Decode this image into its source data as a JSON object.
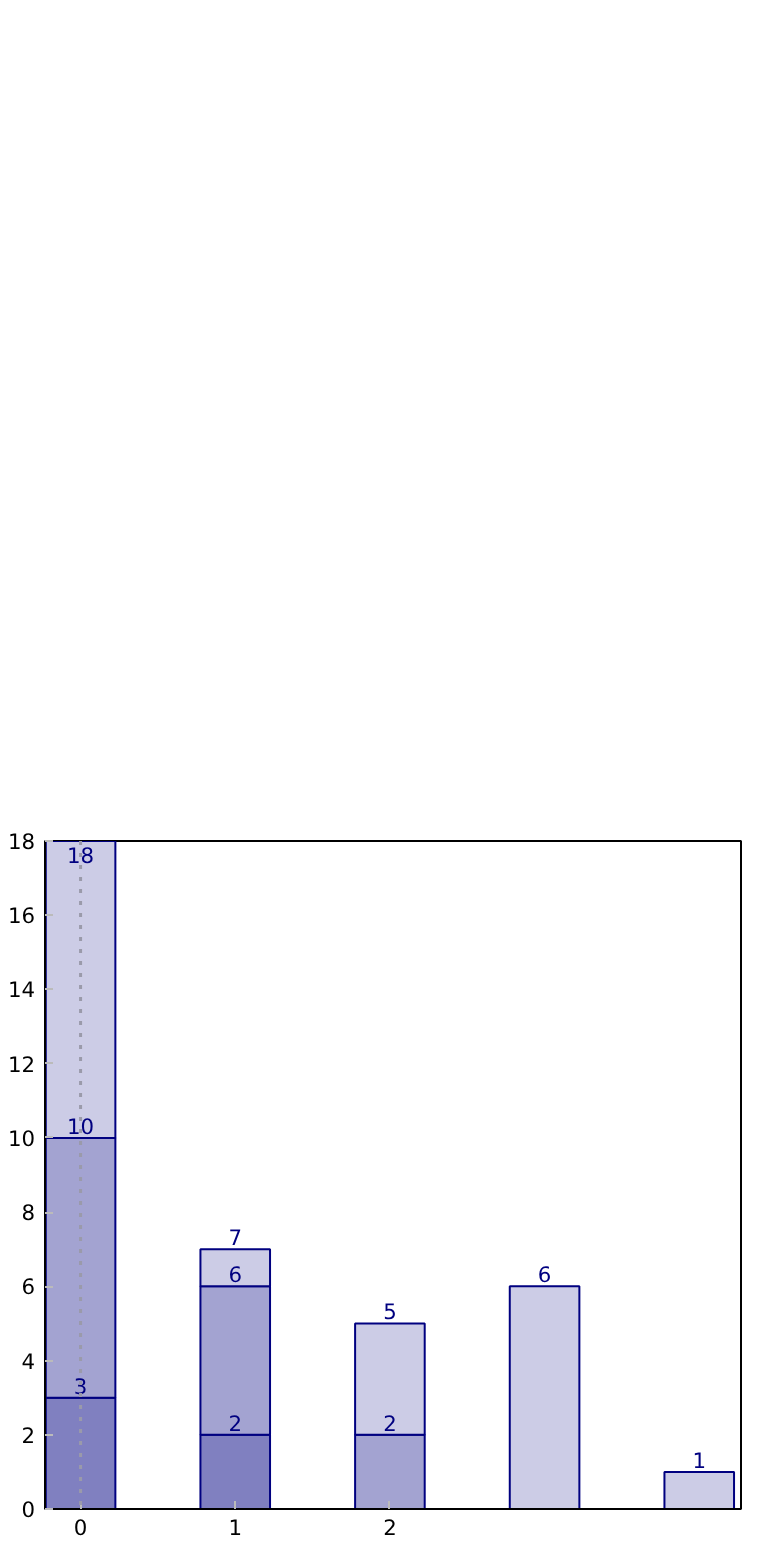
{
  "chart_data": {
    "type": "bar",
    "stacked": true,
    "x": [
      0,
      1,
      2,
      3,
      4
    ],
    "xlim": [
      -0.23,
      4.27
    ],
    "xticks": [
      0,
      1,
      2
    ],
    "ylim": [
      0,
      18
    ],
    "yticks": [
      0,
      2,
      4,
      6,
      8,
      10,
      12,
      14,
      16,
      18
    ],
    "grid": false,
    "series": [
      {
        "color": "#8080c0",
        "values": [
          3,
          2,
          0,
          0,
          0
        ]
      },
      {
        "color": "#a3a3d1",
        "values": [
          7,
          4,
          2,
          0,
          0
        ]
      },
      {
        "color": "#cccce6",
        "values": [
          8,
          1,
          3,
          6,
          1
        ]
      }
    ],
    "annotations": [
      {
        "text": "3",
        "x": 0,
        "y": 3
      },
      {
        "text": "10",
        "x": 0,
        "y": 10
      },
      {
        "text": "18",
        "x": 0,
        "y": 18
      },
      {
        "text": "2",
        "x": 1,
        "y": 2
      },
      {
        "text": "6",
        "x": 1,
        "y": 6
      },
      {
        "text": "7",
        "x": 1,
        "y": 7
      },
      {
        "text": "2",
        "x": 2,
        "y": 2
      },
      {
        "text": "5",
        "x": 2,
        "y": 5
      },
      {
        "text": "6",
        "x": 3,
        "y": 6
      },
      {
        "text": "1",
        "x": 4,
        "y": 1
      }
    ],
    "ref_lines": [
      {
        "axis": "x",
        "value": 0,
        "color": "#9a9aaa",
        "line_style": "dotted"
      }
    ]
  }
}
